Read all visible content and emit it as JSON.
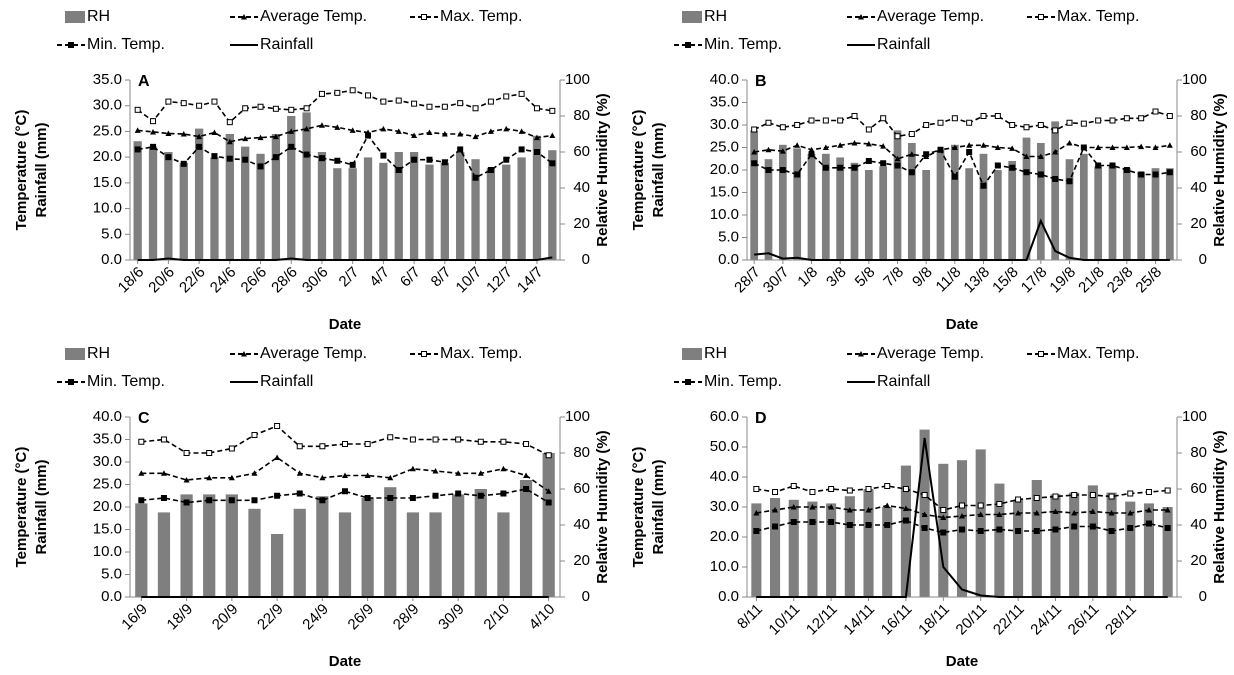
{
  "chart_data": [
    {
      "type": "combo",
      "label": "A",
      "xlabel": "Date",
      "ylabel": [
        "Temperature (°C)",
        "Rainfall (mm)"
      ],
      "y2label": "Relative Humidity (%)",
      "categories": [
        "18/6",
        null,
        "20/6",
        null,
        "22/6",
        null,
        "24/6",
        null,
        "26/6",
        null,
        "28/6",
        null,
        "30/6",
        null,
        "2/7",
        null,
        "4/7",
        null,
        "6/7",
        null,
        "8/7",
        null,
        "10/7",
        null,
        "12/7",
        null,
        "14/7",
        null
      ],
      "ylim": [
        0,
        35
      ],
      "yticks": [
        {
          "value": 0,
          "label": "0.0"
        },
        {
          "value": 5,
          "label": "5.0"
        },
        {
          "value": 10,
          "label": "10.0"
        },
        {
          "value": 15,
          "label": "15.0"
        },
        {
          "value": 20,
          "label": "20.0"
        },
        {
          "value": 25,
          "label": "25.0"
        },
        {
          "value": 30,
          "label": "30.0"
        },
        {
          "value": 35,
          "label": "35.0"
        }
      ],
      "y2lim": [
        0,
        100
      ],
      "y2ticks": [
        0,
        20,
        40,
        60,
        80,
        100
      ],
      "series": [
        {
          "name": "RH",
          "kind": "bar",
          "axis": "y2",
          "color": "#7f7f7f",
          "values": [
            66,
            63,
            60,
            54,
            73,
            57,
            70,
            63,
            59,
            70,
            80,
            82,
            60,
            51,
            51,
            57,
            54,
            60,
            60,
            53,
            54,
            60,
            56,
            51,
            53,
            57,
            69,
            61
          ]
        },
        {
          "name": "Average Temp.",
          "kind": "line",
          "dash": true,
          "marker": "triangle",
          "color": "#000000",
          "values": [
            25.2,
            24.9,
            24.6,
            24.5,
            24,
            24.8,
            23,
            23.6,
            23.8,
            24,
            25,
            25.5,
            26.2,
            25.8,
            25.2,
            24.8,
            25.5,
            25,
            24.2,
            24.8,
            24.5,
            24.5,
            24,
            25,
            25.5,
            25,
            23.8,
            24.2
          ]
        },
        {
          "name": "Max. Temp.",
          "kind": "line",
          "dash": true,
          "marker": "open-square",
          "color": "#000000",
          "values": [
            29.2,
            27,
            30.8,
            30.5,
            30,
            30.8,
            26.8,
            29.5,
            29.8,
            29.4,
            29.2,
            29.5,
            32.3,
            32.5,
            33,
            32,
            30.8,
            31,
            30.4,
            29.8,
            29.8,
            30.5,
            29.5,
            30.8,
            31.8,
            32.3,
            29.5,
            29
          ]
        },
        {
          "name": "Min. Temp.",
          "kind": "line",
          "dash": true,
          "marker": "square",
          "color": "#000000",
          "values": [
            21.5,
            22,
            20,
            18.7,
            22,
            20.2,
            19.7,
            19.5,
            18.2,
            20,
            22,
            20.5,
            19.8,
            19.3,
            18.5,
            24.2,
            20.3,
            17.5,
            19.5,
            19.5,
            19,
            21.5,
            16,
            17.5,
            19.5,
            21.5,
            21,
            18.8
          ]
        },
        {
          "name": "Rainfall",
          "kind": "line",
          "dash": false,
          "marker": "none",
          "color": "#000000",
          "values": [
            0,
            0,
            0.3,
            0,
            0,
            0,
            0,
            0,
            0,
            0,
            0.3,
            0,
            0,
            0,
            0,
            0,
            0,
            0,
            0,
            0,
            0,
            0,
            0,
            0,
            0,
            0,
            0,
            0.5
          ]
        }
      ]
    },
    {
      "type": "combo",
      "label": "B",
      "xlabel": "Date",
      "ylabel": [
        "Temperature (°C)",
        "Rainfall (mm)"
      ],
      "y2label": "Relative Humidity (%)",
      "categories": [
        "28/7",
        null,
        "30/7",
        null,
        "1/8",
        null,
        "3/8",
        null,
        "5/8",
        null,
        "7/8",
        null,
        "9/8",
        null,
        "11/8",
        null,
        "13/8",
        null,
        "15/8",
        null,
        "17/8",
        null,
        "19/8",
        null,
        "21/8",
        null,
        "23/8",
        null,
        "25/8",
        null
      ],
      "ylim": [
        0,
        40
      ],
      "yticks": [
        {
          "value": 0,
          "label": "0.0"
        },
        {
          "value": 5,
          "label": "5.0"
        },
        {
          "value": 10,
          "label": "10.0"
        },
        {
          "value": 15,
          "label": "15.0"
        },
        {
          "value": 20,
          "label": "20.0"
        },
        {
          "value": 25,
          "label": "25.0"
        },
        {
          "value": 30,
          "label": "30.0"
        },
        {
          "value": 35,
          "label": "35.0"
        },
        {
          "value": 40,
          "label": "40.0"
        }
      ],
      "y2lim": [
        0,
        100
      ],
      "y2ticks": [
        0,
        20,
        40,
        60,
        80,
        100
      ],
      "series": [
        {
          "name": "RH",
          "kind": "bar",
          "axis": "y2",
          "color": "#7f7f7f",
          "values": [
            72,
            56,
            64,
            62,
            59,
            59,
            57,
            54,
            50,
            52,
            72,
            65,
            50,
            61,
            64,
            51,
            59,
            50,
            55,
            68,
            65,
            77,
            56,
            59,
            52,
            52,
            51,
            49,
            51,
            51
          ]
        },
        {
          "name": "Average Temp.",
          "kind": "line",
          "dash": true,
          "marker": "triangle",
          "color": "#000000",
          "values": [
            24,
            24.5,
            24.2,
            25.5,
            24.5,
            25,
            25.5,
            26,
            25.8,
            25.3,
            22.5,
            23.5,
            23,
            24.5,
            25,
            25.5,
            25.5,
            25,
            24.8,
            23,
            23,
            24,
            26,
            25,
            25,
            25,
            25,
            25.2,
            25,
            25.5
          ]
        },
        {
          "name": "Max. Temp.",
          "kind": "line",
          "dash": true,
          "marker": "open-square",
          "color": "#000000",
          "values": [
            29,
            30.5,
            29.5,
            30,
            31,
            31,
            31,
            32,
            29,
            31.5,
            27.5,
            28,
            30,
            30.5,
            31.5,
            30.5,
            32,
            32,
            30,
            29.5,
            30,
            28.8,
            30.5,
            30.3,
            31,
            31,
            31.5,
            31.5,
            33,
            32
          ]
        },
        {
          "name": "Min. Temp.",
          "kind": "line",
          "dash": true,
          "marker": "square",
          "color": "#000000",
          "values": [
            21.5,
            20,
            20,
            19,
            23.5,
            20.5,
            20.5,
            20.5,
            22,
            21.5,
            21,
            19.5,
            23.5,
            24.5,
            18.5,
            24,
            16.5,
            21,
            20.5,
            19.5,
            19,
            18,
            17.5,
            25,
            21,
            21,
            20,
            19,
            19,
            19.5
          ]
        },
        {
          "name": "Rainfall",
          "kind": "line",
          "dash": false,
          "marker": "none",
          "color": "#000000",
          "values": [
            1.2,
            1.5,
            0.3,
            0.5,
            0,
            0,
            0,
            0,
            0,
            0,
            0,
            0,
            0,
            0,
            0,
            0,
            0,
            0,
            0,
            0,
            8.7,
            2,
            0.5,
            0,
            0,
            0,
            0,
            0,
            0,
            0
          ]
        }
      ]
    },
    {
      "type": "combo",
      "label": "C",
      "xlabel": "Date",
      "ylabel": [
        "Temperature (°C)",
        "Rainfall (mm)"
      ],
      "y2label": "Relative Humidity (%)",
      "categories": [
        "16/9",
        null,
        "18/9",
        null,
        "20/9",
        null,
        "22/9",
        null,
        "24/9",
        null,
        "26/9",
        null,
        "28/9",
        null,
        "30/9",
        null,
        "2/10",
        null,
        "4/10"
      ],
      "ylim": [
        0,
        40
      ],
      "yticks": [
        {
          "value": 0,
          "label": "0.0"
        },
        {
          "value": 5,
          "label": "5.0"
        },
        {
          "value": 10,
          "label": "10.0"
        },
        {
          "value": 15,
          "label": "15.0"
        },
        {
          "value": 20,
          "label": "20.0"
        },
        {
          "value": 25,
          "label": "25.0"
        },
        {
          "value": 30,
          "label": "30.0"
        },
        {
          "value": 35,
          "label": "35.0"
        },
        {
          "value": 40,
          "label": "40.0"
        }
      ],
      "y2lim": [
        0,
        100
      ],
      "y2ticks": [
        0,
        20,
        40,
        60,
        80,
        100
      ],
      "series": [
        {
          "name": "RH",
          "kind": "bar",
          "axis": "y2",
          "color": "#7f7f7f",
          "values": [
            52,
            47,
            57,
            57,
            57,
            49,
            35,
            49,
            56,
            47,
            55,
            61,
            47,
            47,
            57,
            60,
            47,
            65,
            80
          ]
        },
        {
          "name": "Average Temp.",
          "kind": "line",
          "dash": true,
          "marker": "triangle",
          "color": "#000000",
          "values": [
            27.5,
            27.5,
            26,
            26.5,
            26.5,
            27.5,
            31,
            27.5,
            26.5,
            27,
            27,
            26.5,
            28.5,
            28,
            27.5,
            27.5,
            28.5,
            27,
            23.5
          ]
        },
        {
          "name": "Max. Temp.",
          "kind": "line",
          "dash": true,
          "marker": "open-square",
          "color": "#000000",
          "values": [
            34.5,
            35,
            32,
            32,
            33,
            36,
            38,
            33.5,
            33.5,
            34,
            34,
            35.5,
            35,
            35,
            35,
            34.5,
            34.5,
            34,
            31.5
          ]
        },
        {
          "name": "Min. Temp.",
          "kind": "line",
          "dash": true,
          "marker": "square",
          "color": "#000000",
          "values": [
            21.5,
            22,
            21,
            21.5,
            21.5,
            21.5,
            22.5,
            23,
            21.5,
            23.5,
            22,
            22,
            22,
            22.5,
            23,
            22.5,
            23,
            24,
            21
          ]
        },
        {
          "name": "Rainfall",
          "kind": "line",
          "dash": false,
          "marker": "none",
          "color": "#000000",
          "values": [
            0,
            0,
            0,
            0,
            0,
            0,
            0,
            0,
            0,
            0,
            0,
            0,
            0,
            0,
            0,
            0,
            0,
            0,
            0
          ]
        }
      ]
    },
    {
      "type": "combo",
      "label": "D",
      "xlabel": "Date",
      "ylabel": [
        "Temperature (°C)",
        "Rainfall (mm)"
      ],
      "y2label": "Relative Humidity (%)",
      "categories": [
        "8/11",
        null,
        "10/11",
        null,
        "12/11",
        null,
        "14/11",
        null,
        "16/11",
        null,
        "18/11",
        null,
        "20/11",
        null,
        "22/11",
        null,
        "24/11",
        null,
        "26/11",
        null,
        "28/11",
        null,
        null
      ],
      "ylim": [
        0,
        60
      ],
      "yticks": [
        {
          "value": 0,
          "label": "0.0"
        },
        {
          "value": 10,
          "label": "10.0"
        },
        {
          "value": 20,
          "label": "20.0"
        },
        {
          "value": 30,
          "label": "30.0"
        },
        {
          "value": 40,
          "label": "40.0"
        },
        {
          "value": 50,
          "label": "50.0"
        },
        {
          "value": 60,
          "label": "60.0"
        }
      ],
      "y2lim": [
        0,
        100
      ],
      "y2ticks": [
        0,
        20,
        40,
        60,
        80,
        100
      ],
      "series": [
        {
          "name": "RH",
          "kind": "bar",
          "axis": "y2",
          "color": "#7f7f7f",
          "values": [
            52,
            55,
            54,
            53,
            52,
            56,
            60,
            50,
            73,
            93,
            74,
            76,
            82,
            63,
            54,
            65,
            57,
            58,
            62,
            58,
            53,
            52,
            50
          ]
        },
        {
          "name": "Average Temp.",
          "kind": "line",
          "dash": true,
          "marker": "triangle",
          "color": "#000000",
          "values": [
            28,
            29,
            30,
            30,
            30,
            29,
            29,
            30.5,
            29.5,
            27.5,
            26.5,
            27,
            27.5,
            27.5,
            28,
            28,
            28.5,
            28,
            28.5,
            28,
            28,
            29,
            29
          ]
        },
        {
          "name": "Max. Temp.",
          "kind": "line",
          "dash": true,
          "marker": "open-square",
          "color": "#000000",
          "values": [
            36,
            35,
            37,
            35,
            36,
            35.5,
            36,
            37,
            36,
            34,
            29,
            30.5,
            30.5,
            31,
            32.5,
            33,
            33.5,
            34,
            34,
            33.5,
            34.5,
            35,
            35.5
          ]
        },
        {
          "name": "Min. Temp.",
          "kind": "line",
          "dash": true,
          "marker": "square",
          "color": "#000000",
          "values": [
            22,
            23.5,
            25,
            25,
            25,
            24,
            24,
            24,
            25.5,
            23,
            21.5,
            22.5,
            22,
            22.5,
            22,
            22,
            22.5,
            23.5,
            23.5,
            22,
            23,
            24.5,
            23
          ]
        },
        {
          "name": "Rainfall",
          "kind": "line",
          "dash": false,
          "marker": "none",
          "color": "#000000",
          "values": [
            0,
            0,
            0,
            0,
            0,
            0,
            0,
            0,
            0,
            53,
            10,
            2.5,
            0.5,
            0,
            0,
            0,
            0,
            0,
            0,
            0,
            0,
            0,
            0
          ]
        }
      ]
    }
  ]
}
